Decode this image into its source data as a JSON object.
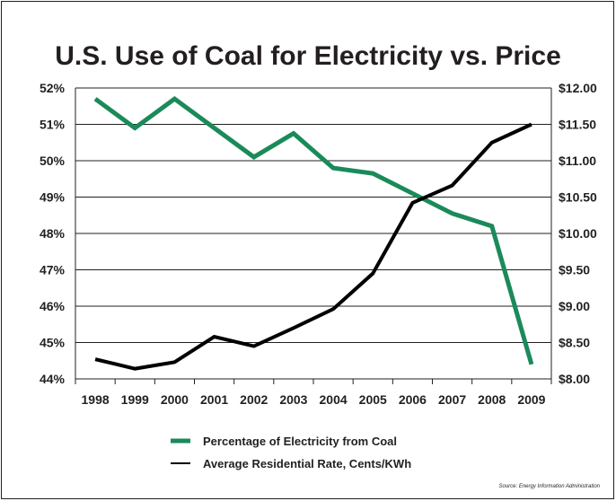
{
  "chart_data": {
    "type": "line",
    "title": "U.S. Use of Coal for Electricity vs. Price",
    "categories": [
      "1998",
      "1999",
      "2000",
      "2001",
      "2002",
      "2003",
      "2004",
      "2005",
      "2006",
      "2007",
      "2008",
      "2009"
    ],
    "y_left": {
      "ylim": [
        44,
        52
      ],
      "ticks": [
        "44%",
        "45%",
        "46%",
        "47%",
        "48%",
        "49%",
        "50%",
        "51%",
        "52%"
      ]
    },
    "y_right": {
      "ylim": [
        8.0,
        12.0
      ],
      "ticks": [
        "$8.00",
        "$8.50",
        "$9.00",
        "$9.50",
        "$10.00",
        "$10.50",
        "$11.00",
        "$11.50",
        "$12.00"
      ]
    },
    "grid": true,
    "legend_position": "bottom",
    "series": [
      {
        "name": "Percentage of Electricity from Coal",
        "axis": "left",
        "color": "#1b8a5a",
        "values": [
          51.7,
          50.9,
          51.7,
          50.9,
          50.1,
          50.75,
          49.8,
          49.65,
          49.1,
          48.55,
          48.2,
          44.4
        ]
      },
      {
        "name": "Average Residential Rate, Cents/KWh",
        "axis": "right",
        "color": "#000000",
        "values": [
          8.27,
          8.14,
          8.23,
          8.58,
          8.45,
          8.7,
          8.96,
          9.45,
          10.42,
          10.66,
          11.25,
          11.5
        ]
      }
    ],
    "source": "Source: Energy Information Administration"
  }
}
